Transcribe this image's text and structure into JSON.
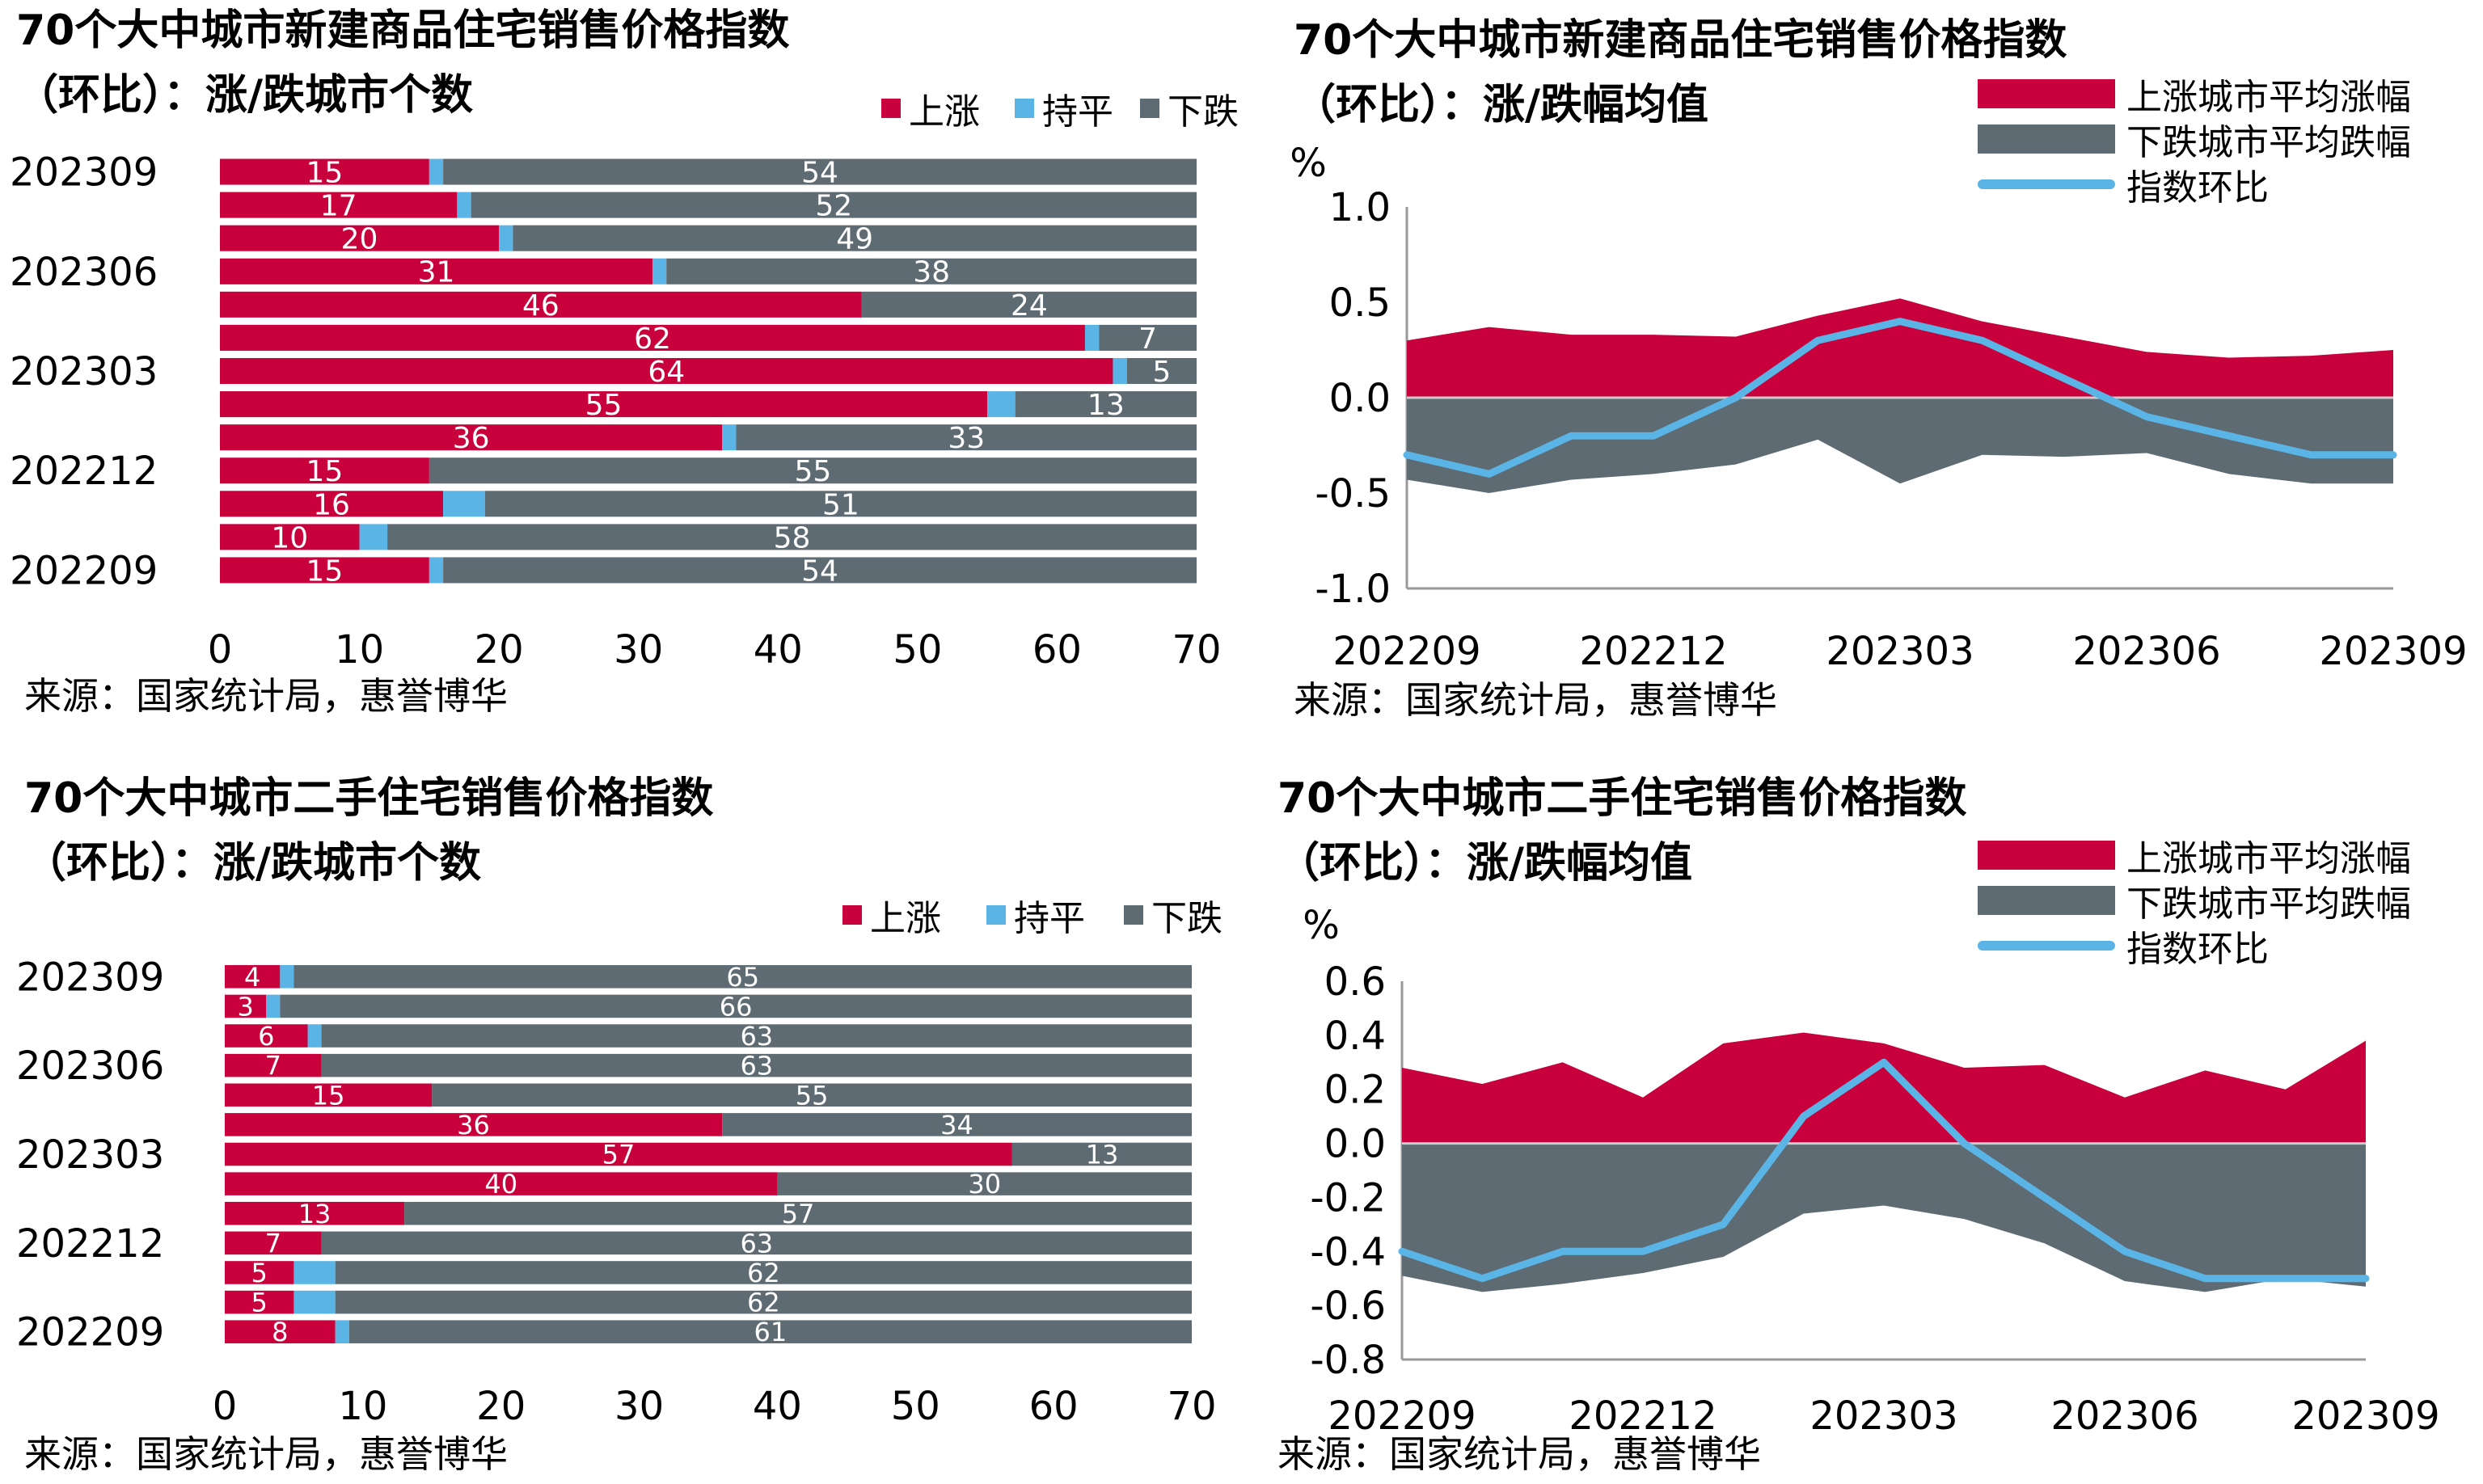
{
  "colors": {
    "up": "#c8003c",
    "flat": "#5ab4e6",
    "down": "#5f6b73",
    "line": "#5ab4e6",
    "axis": "#999999"
  },
  "legend_labels": {
    "up": "上涨",
    "flat": "持平",
    "down": "下跌"
  },
  "panels": {
    "tl": {
      "title_line1": "70个大中城市新建商品住宅销售价格指数",
      "title_line2": "（环比）：涨/跌城市个数",
      "source": "来源：国家统计局，惠誉博华"
    },
    "tr": {
      "title_line1": "70个大中城市新建商品住宅销售价格指数",
      "title_line2": "（环比）：涨/跌幅均值",
      "source": "来源：国家统计局，惠誉博华",
      "legend": {
        "up": "上涨城市平均涨幅",
        "down": "下跌城市平均跌幅",
        "line": "指数环比"
      }
    },
    "bl": {
      "title_line1": "70个大中城市二手住宅销售价格指数",
      "title_line2": "（环比）：涨/跌城市个数",
      "source": "来源：国家统计局，惠誉博华"
    },
    "br": {
      "title_line1": "70个大中城市二手住宅销售价格指数",
      "title_line2": "（环比）：涨/跌幅均值",
      "source": "来源：国家统计局，惠誉博华",
      "legend": {
        "up": "上涨城市平均涨幅",
        "down": "下跌城市平均跌幅",
        "line": "指数环比"
      }
    }
  },
  "chart_data": [
    {
      "id": "new_counts",
      "type": "bar",
      "stacked": true,
      "orientation": "horizontal",
      "title": "70个大中城市新建商品住宅销售价格指数（环比）：涨/跌城市个数",
      "categories": [
        "202309",
        "202308",
        "202307",
        "202306",
        "202305",
        "202304",
        "202303",
        "202302",
        "202301",
        "202212",
        "202211",
        "202210",
        "202209"
      ],
      "category_tick_labels": [
        "202309",
        "202306",
        "202303",
        "202212",
        "202209"
      ],
      "series": [
        {
          "name": "上涨",
          "values": [
            15,
            17,
            20,
            31,
            46,
            62,
            64,
            55,
            36,
            15,
            16,
            10,
            15
          ]
        },
        {
          "name": "持平",
          "values": [
            1,
            1,
            1,
            1,
            0,
            1,
            1,
            2,
            1,
            0,
            3,
            2,
            1
          ]
        },
        {
          "name": "下跌",
          "values": [
            54,
            52,
            49,
            38,
            24,
            7,
            5,
            13,
            33,
            55,
            51,
            58,
            54
          ]
        }
      ],
      "xlim": [
        0,
        70
      ],
      "xticks": [
        0,
        10,
        20,
        30,
        40,
        50,
        60,
        70
      ]
    },
    {
      "id": "new_avg",
      "type": "area",
      "title": "70个大中城市新建商品住宅销售价格指数（环比）：涨/跌幅均值",
      "ylabel": "%",
      "x": [
        "202209",
        "202210",
        "202211",
        "202212",
        "202301",
        "202302",
        "202303",
        "202304",
        "202305",
        "202306",
        "202307",
        "202308",
        "202309"
      ],
      "x_tick_labels": [
        "202209",
        "202212",
        "202303",
        "202306",
        "202309"
      ],
      "series": [
        {
          "name": "上涨城市平均涨幅",
          "values": [
            0.3,
            0.37,
            0.33,
            0.33,
            0.32,
            0.43,
            0.52,
            0.4,
            0.32,
            0.24,
            0.21,
            0.22,
            0.25
          ]
        },
        {
          "name": "下跌城市平均跌幅",
          "values": [
            -0.43,
            -0.5,
            -0.43,
            -0.4,
            -0.35,
            -0.22,
            -0.45,
            -0.3,
            -0.31,
            -0.29,
            -0.4,
            -0.45,
            -0.45
          ]
        },
        {
          "name": "指数环比",
          "type": "line",
          "values": [
            -0.3,
            -0.4,
            -0.2,
            -0.2,
            0.0,
            0.3,
            0.4,
            0.3,
            0.1,
            -0.1,
            -0.2,
            -0.3,
            -0.3
          ]
        }
      ],
      "ylim": [
        -1.0,
        1.0
      ],
      "yticks": [
        -1.0,
        -0.5,
        0.0,
        0.5,
        1.0
      ]
    },
    {
      "id": "second_counts",
      "type": "bar",
      "stacked": true,
      "orientation": "horizontal",
      "title": "70个大中城市二手住宅销售价格指数（环比）：涨/跌城市个数",
      "categories": [
        "202309",
        "202308",
        "202307",
        "202306",
        "202305",
        "202304",
        "202303",
        "202302",
        "202301",
        "202212",
        "202211",
        "202210",
        "202209"
      ],
      "category_tick_labels": [
        "202309",
        "202306",
        "202303",
        "202212",
        "202209"
      ],
      "series": [
        {
          "name": "上涨",
          "values": [
            4,
            3,
            6,
            7,
            15,
            36,
            57,
            40,
            13,
            7,
            5,
            5,
            8
          ]
        },
        {
          "name": "持平",
          "values": [
            1,
            1,
            1,
            0,
            0,
            0,
            0,
            0,
            0,
            0,
            3,
            3,
            1
          ]
        },
        {
          "name": "下跌",
          "values": [
            65,
            66,
            63,
            63,
            55,
            34,
            13,
            30,
            57,
            63,
            62,
            62,
            61
          ]
        }
      ],
      "xlim": [
        0,
        70
      ],
      "xticks": [
        0,
        10,
        20,
        30,
        40,
        50,
        60,
        70
      ]
    },
    {
      "id": "second_avg",
      "type": "area",
      "title": "70个大中城市二手住宅销售价格指数（环比）：涨/跌幅均值",
      "ylabel": "%",
      "x": [
        "202209",
        "202210",
        "202211",
        "202212",
        "202301",
        "202302",
        "202303",
        "202304",
        "202305",
        "202306",
        "202307",
        "202308",
        "202309"
      ],
      "x_tick_labels": [
        "202209",
        "202212",
        "202303",
        "202306",
        "202309"
      ],
      "series": [
        {
          "name": "上涨城市平均涨幅",
          "values": [
            0.28,
            0.22,
            0.3,
            0.17,
            0.37,
            0.41,
            0.37,
            0.28,
            0.29,
            0.17,
            0.27,
            0.2,
            0.38
          ]
        },
        {
          "name": "下跌城市平均跌幅",
          "values": [
            -0.49,
            -0.55,
            -0.52,
            -0.48,
            -0.42,
            -0.26,
            -0.23,
            -0.28,
            -0.37,
            -0.51,
            -0.55,
            -0.5,
            -0.53
          ]
        },
        {
          "name": "指数环比",
          "type": "line",
          "values": [
            -0.4,
            -0.5,
            -0.4,
            -0.4,
            -0.3,
            0.1,
            0.3,
            0.0,
            -0.2,
            -0.4,
            -0.5,
            -0.5,
            -0.5
          ]
        }
      ],
      "ylim": [
        -0.8,
        0.6
      ],
      "yticks": [
        -0.8,
        -0.6,
        -0.4,
        -0.2,
        0.0,
        0.2,
        0.4,
        0.6
      ]
    }
  ]
}
